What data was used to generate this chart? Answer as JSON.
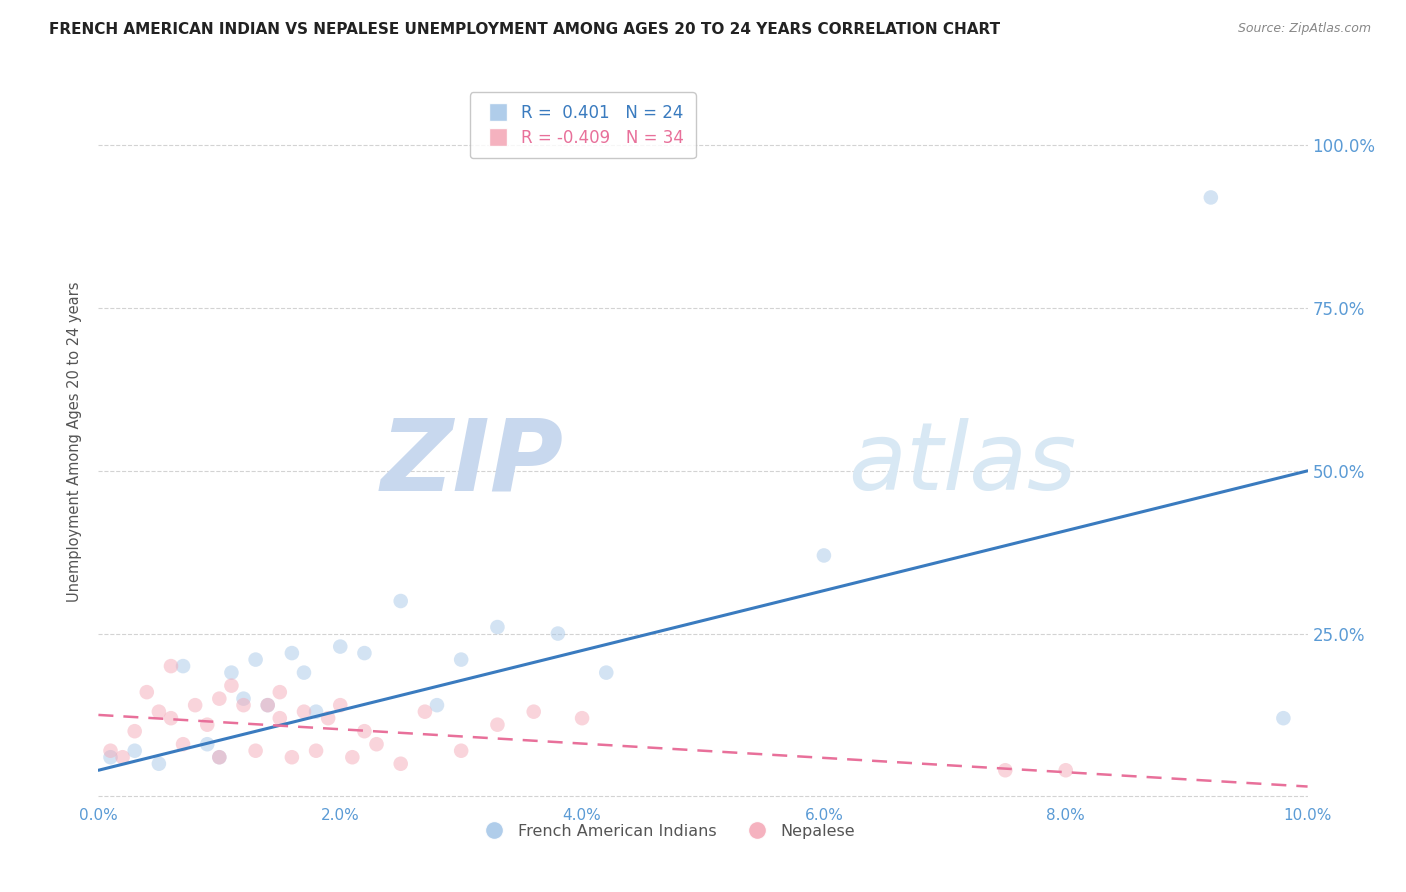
{
  "title": "FRENCH AMERICAN INDIAN VS NEPALESE UNEMPLOYMENT AMONG AGES 20 TO 24 YEARS CORRELATION CHART",
  "source": "Source: ZipAtlas.com",
  "ylabel": "Unemployment Among Ages 20 to 24 years",
  "xlim": [
    0.0,
    0.1
  ],
  "ylim": [
    -0.01,
    1.1
  ],
  "yticks": [
    0.0,
    0.25,
    0.5,
    0.75,
    1.0
  ],
  "ytick_labels": [
    "",
    "25.0%",
    "50.0%",
    "75.0%",
    "100.0%"
  ],
  "xticks": [
    0.0,
    0.02,
    0.04,
    0.06,
    0.08,
    0.1
  ],
  "xtick_labels": [
    "0.0%",
    "2.0%",
    "4.0%",
    "6.0%",
    "8.0%",
    "10.0%"
  ],
  "blue_label": "French American Indians",
  "pink_label": "Nepalese",
  "blue_R": "0.401",
  "blue_N": "24",
  "pink_R": "-0.409",
  "pink_N": "34",
  "blue_color": "#a8c8e8",
  "pink_color": "#f4aab8",
  "blue_line_color": "#3a7bbf",
  "pink_line_color": "#e8709a",
  "watermark_zip_color": "#c8d8ee",
  "watermark_atlas_color": "#d8e8f4",
  "blue_dots_x": [
    0.001,
    0.003,
    0.005,
    0.007,
    0.009,
    0.01,
    0.011,
    0.012,
    0.013,
    0.014,
    0.016,
    0.017,
    0.018,
    0.02,
    0.022,
    0.025,
    0.028,
    0.03,
    0.033,
    0.038,
    0.042,
    0.06,
    0.092,
    0.098
  ],
  "blue_dots_y": [
    0.06,
    0.07,
    0.05,
    0.2,
    0.08,
    0.06,
    0.19,
    0.15,
    0.21,
    0.14,
    0.22,
    0.19,
    0.13,
    0.23,
    0.22,
    0.3,
    0.14,
    0.21,
    0.26,
    0.25,
    0.19,
    0.37,
    0.92,
    0.12
  ],
  "pink_dots_x": [
    0.001,
    0.002,
    0.003,
    0.004,
    0.005,
    0.006,
    0.006,
    0.007,
    0.008,
    0.009,
    0.01,
    0.01,
    0.011,
    0.012,
    0.013,
    0.014,
    0.015,
    0.015,
    0.016,
    0.017,
    0.018,
    0.019,
    0.02,
    0.021,
    0.022,
    0.023,
    0.025,
    0.027,
    0.03,
    0.033,
    0.036,
    0.04,
    0.075,
    0.08
  ],
  "pink_dots_y": [
    0.07,
    0.06,
    0.1,
    0.16,
    0.13,
    0.2,
    0.12,
    0.08,
    0.14,
    0.11,
    0.06,
    0.15,
    0.17,
    0.14,
    0.07,
    0.14,
    0.12,
    0.16,
    0.06,
    0.13,
    0.07,
    0.12,
    0.14,
    0.06,
    0.1,
    0.08,
    0.05,
    0.13,
    0.07,
    0.11,
    0.13,
    0.12,
    0.04,
    0.04
  ],
  "blue_trend_x": [
    0.0,
    0.1
  ],
  "blue_trend_y": [
    0.04,
    0.5
  ],
  "pink_trend_x": [
    0.0,
    0.1
  ],
  "pink_trend_y": [
    0.125,
    0.015
  ],
  "background_color": "#ffffff",
  "grid_color": "#c8c8c8",
  "dot_size": 110,
  "dot_alpha": 0.5
}
